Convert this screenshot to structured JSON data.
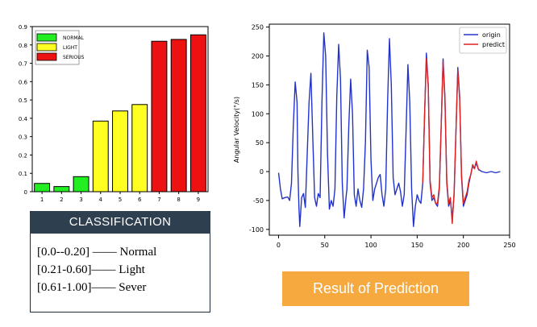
{
  "chart_data": [
    {
      "type": "bar",
      "categories": [
        "1",
        "2",
        "3",
        "4",
        "5",
        "6",
        "7",
        "8",
        "9"
      ],
      "values": [
        0.045,
        0.028,
        0.082,
        0.385,
        0.44,
        0.475,
        0.82,
        0.83,
        0.855
      ],
      "bar_classes": [
        "NORMAL",
        "NORMAL",
        "NORMAL",
        "LIGHT",
        "LIGHT",
        "LIGHT",
        "SERIOUS",
        "SERIOUS",
        "SERIOUS"
      ],
      "yticks": [
        "0",
        "0.1",
        "0.2",
        "0.3",
        "0.4",
        "0.5",
        "0.6",
        "0.7",
        "0.8",
        "0.9"
      ],
      "ylim": [
        0,
        0.9
      ],
      "legend": [
        {
          "label": "NORMAL",
          "color": "#22ee22"
        },
        {
          "label": "LIGHT",
          "color": "#ffff22"
        },
        {
          "label": "SERIOUS",
          "color": "#ee1111"
        }
      ],
      "legend_position": "top-left"
    },
    {
      "type": "line",
      "xlim": [
        -10,
        250
      ],
      "ylim": [
        -110,
        255
      ],
      "xticks": [
        "0",
        "50",
        "100",
        "150",
        "200",
        "250"
      ],
      "yticks": [
        "250",
        "200",
        "150",
        "100",
        "50",
        "0",
        "-50",
        "-100"
      ],
      "ylabel": "Angular Velocity(°/s)",
      "legend_position": "top-right",
      "series": [
        {
          "name": "origin",
          "color": "#2233cc",
          "points": [
            [
              0,
              -2
            ],
            [
              2,
              -30
            ],
            [
              4,
              -47
            ],
            [
              7,
              -45
            ],
            [
              10,
              -44
            ],
            [
              12,
              -50
            ],
            [
              14,
              -20
            ],
            [
              16,
              80
            ],
            [
              18,
              155
            ],
            [
              20,
              120
            ],
            [
              21,
              0
            ],
            [
              22,
              -60
            ],
            [
              23,
              -95
            ],
            [
              25,
              -45
            ],
            [
              27,
              -38
            ],
            [
              29,
              -62
            ],
            [
              31,
              30
            ],
            [
              33,
              120
            ],
            [
              35,
              170
            ],
            [
              37,
              60
            ],
            [
              39,
              -45
            ],
            [
              41,
              -60
            ],
            [
              43,
              -38
            ],
            [
              45,
              -45
            ],
            [
              47,
              120
            ],
            [
              49,
              240
            ],
            [
              51,
              200
            ],
            [
              53,
              30
            ],
            [
              55,
              -65
            ],
            [
              57,
              -50
            ],
            [
              59,
              -60
            ],
            [
              61,
              -30
            ],
            [
              63,
              130
            ],
            [
              65,
              220
            ],
            [
              67,
              160
            ],
            [
              69,
              -20
            ],
            [
              71,
              -80
            ],
            [
              73,
              -45
            ],
            [
              74,
              -30
            ],
            [
              76,
              80
            ],
            [
              78,
              160
            ],
            [
              80,
              100
            ],
            [
              82,
              -40
            ],
            [
              84,
              -60
            ],
            [
              86,
              -30
            ],
            [
              88,
              -50
            ],
            [
              90,
              -62
            ],
            [
              92,
              -30
            ],
            [
              94,
              50
            ],
            [
              96,
              210
            ],
            [
              98,
              180
            ],
            [
              100,
              20
            ],
            [
              102,
              -50
            ],
            [
              104,
              -30
            ],
            [
              106,
              -20
            ],
            [
              108,
              -10
            ],
            [
              110,
              -5
            ],
            [
              112,
              -40
            ],
            [
              114,
              -60
            ],
            [
              116,
              -30
            ],
            [
              118,
              120
            ],
            [
              120,
              230
            ],
            [
              122,
              150
            ],
            [
              124,
              -10
            ],
            [
              126,
              -40
            ],
            [
              128,
              -30
            ],
            [
              130,
              -20
            ],
            [
              132,
              -35
            ],
            [
              134,
              -60
            ],
            [
              136,
              -40
            ],
            [
              138,
              70
            ],
            [
              140,
              185
            ],
            [
              142,
              120
            ],
            [
              144,
              -30
            ],
            [
              146,
              -95
            ],
            [
              148,
              -60
            ],
            [
              150,
              -40
            ],
            [
              152,
              -50
            ],
            [
              154,
              -55
            ],
            [
              156,
              -20
            ],
            [
              158,
              100
            ],
            [
              160,
              205
            ],
            [
              162,
              150
            ],
            [
              164,
              -20
            ],
            [
              166,
              -50
            ],
            [
              168,
              -45
            ],
            [
              170,
              -55
            ],
            [
              172,
              -60
            ],
            [
              174,
              -30
            ],
            [
              176,
              80
            ],
            [
              178,
              195
            ],
            [
              180,
              130
            ],
            [
              182,
              -20
            ],
            [
              184,
              -60
            ],
            [
              186,
              -50
            ],
            [
              188,
              -80
            ],
            [
              190,
              -40
            ],
            [
              192,
              70
            ],
            [
              194,
              180
            ],
            [
              196,
              130
            ],
            [
              198,
              -10
            ],
            [
              200,
              -60
            ],
            [
              202,
              -50
            ],
            [
              204,
              -40
            ],
            [
              206,
              -20
            ],
            [
              208,
              -5
            ],
            [
              210,
              10
            ],
            [
              212,
              5
            ],
            [
              214,
              15
            ],
            [
              216,
              5
            ],
            [
              218,
              2
            ],
            [
              220,
              0
            ],
            [
              225,
              -2
            ],
            [
              230,
              0
            ],
            [
              235,
              -2
            ],
            [
              240,
              0
            ]
          ]
        },
        {
          "name": "predict",
          "color": "#dd2222",
          "points": [
            [
              156,
              -20
            ],
            [
              158,
              100
            ],
            [
              160,
              195
            ],
            [
              162,
              150
            ],
            [
              164,
              -15
            ],
            [
              166,
              -45
            ],
            [
              168,
              -40
            ],
            [
              170,
              -55
            ],
            [
              172,
              -55
            ],
            [
              174,
              -25
            ],
            [
              176,
              80
            ],
            [
              178,
              190
            ],
            [
              180,
              125
            ],
            [
              182,
              -15
            ],
            [
              184,
              -55
            ],
            [
              186,
              -45
            ],
            [
              188,
              -90
            ],
            [
              190,
              -35
            ],
            [
              192,
              70
            ],
            [
              194,
              175
            ],
            [
              196,
              125
            ],
            [
              198,
              -5
            ],
            [
              200,
              -55
            ],
            [
              202,
              -45
            ],
            [
              204,
              -35
            ],
            [
              206,
              -15
            ],
            [
              208,
              -5
            ],
            [
              210,
              12
            ],
            [
              212,
              5
            ],
            [
              214,
              18
            ],
            [
              216,
              5
            ],
            [
              217,
              2
            ]
          ]
        }
      ]
    }
  ],
  "classification": {
    "title": "CLASSIFICATION",
    "lines": [
      "[0.0--0.20] —— Normal",
      "[0.21-0.60]—— Light",
      "[0.61-1.00]—— Sever"
    ]
  },
  "result_button": "Result of Prediction"
}
